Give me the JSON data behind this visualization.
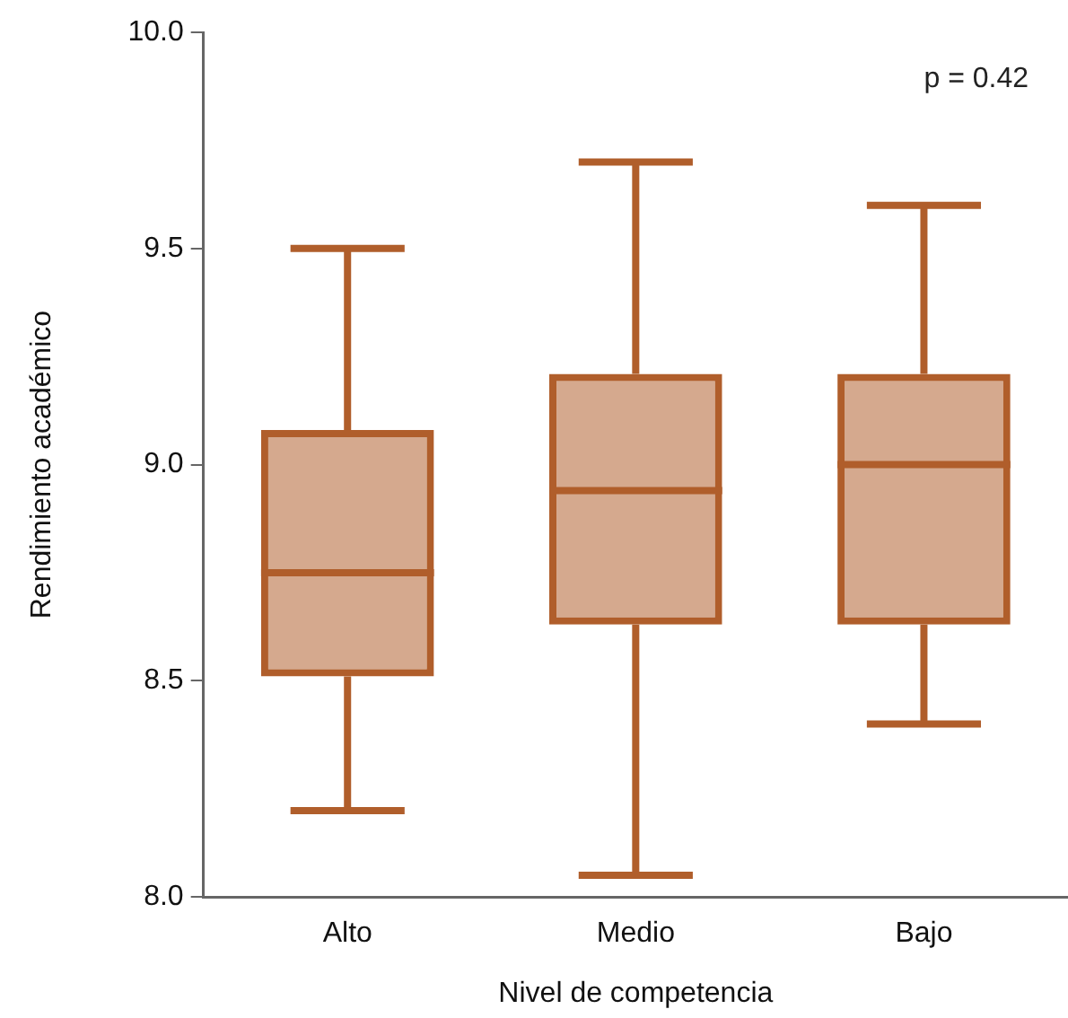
{
  "chart_data": {
    "type": "box",
    "xlabel": "Nivel de competencia",
    "ylabel": "Rendimiento académico",
    "categories": [
      "Alto",
      "Medio",
      "Bajo"
    ],
    "series": [
      {
        "color": "#b05e2b",
        "boxes": [
          {
            "low": 8.2,
            "q1": 8.51,
            "median": 8.75,
            "q3": 9.08,
            "high": 9.5
          },
          {
            "low": 8.05,
            "q1": 8.63,
            "median": 8.94,
            "q3": 9.21,
            "high": 9.7
          },
          {
            "low": 8.4,
            "q1": 8.63,
            "median": 9.0,
            "q3": 9.21,
            "high": 9.6
          }
        ]
      }
    ],
    "ylim": [
      8.0,
      10.0
    ],
    "yticks": [
      {
        "value": 8.0,
        "label": "8.0"
      },
      {
        "value": 8.5,
        "label": "8.5"
      },
      {
        "value": 9.0,
        "label": "9.0"
      },
      {
        "value": 9.5,
        "label": "9.5"
      },
      {
        "value": 10.0,
        "label": "10.0"
      }
    ],
    "grid": false,
    "legend": false,
    "annotations": [
      "p = 0.42"
    ]
  }
}
